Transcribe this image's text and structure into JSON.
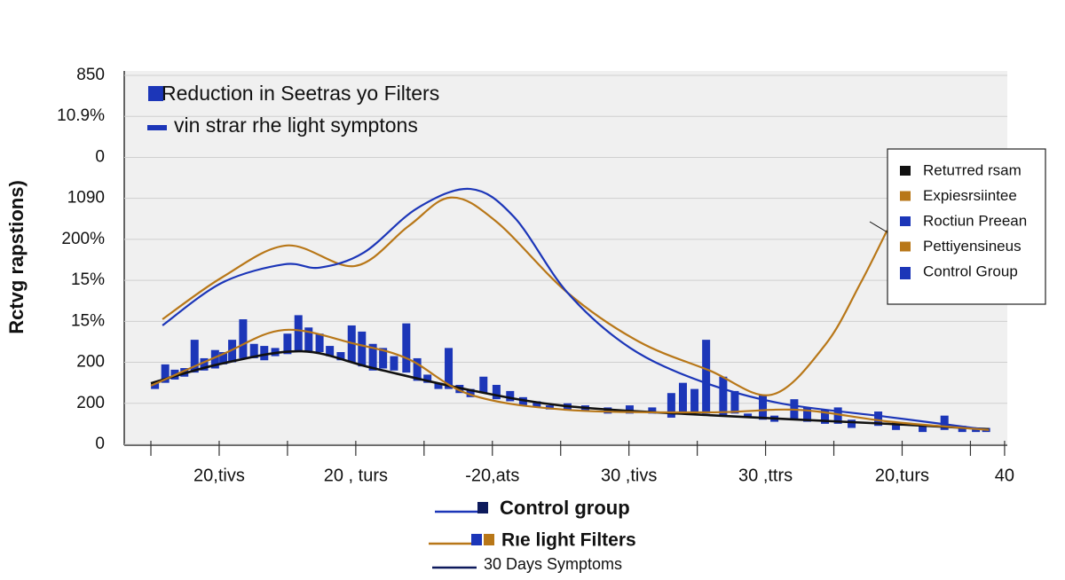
{
  "chart_data": {
    "type": "line",
    "title": "Reduction in Seetras yo Filters",
    "subtitle": "vin strar rhe light symptons",
    "ylabel": "Rctvg rapstions)",
    "xlim": [
      -0.39,
      12.54
    ],
    "ylim": [
      0,
      9
    ],
    "grid": true,
    "legend": "right",
    "xticks": [
      {
        "value": 1,
        "label": "20,tivs"
      },
      {
        "value": 3,
        "label": "20 , turs"
      },
      {
        "value": 5,
        "label": "-20,ats"
      },
      {
        "value": 7,
        "label": "30 ,tivs"
      },
      {
        "value": 9,
        "label": "30 ,ttrs"
      },
      {
        "value": 11,
        "label": "20,turs"
      },
      {
        "value": 12.5,
        "label": "40"
      }
    ],
    "xminor_ticks": [
      0,
      2,
      4,
      6,
      8,
      10,
      12
    ],
    "yticks": [
      {
        "value": 0,
        "label": "0"
      },
      {
        "value": 1,
        "label": "200"
      },
      {
        "value": 2,
        "label": "200"
      },
      {
        "value": 3,
        "label": "15%"
      },
      {
        "value": 4,
        "label": "15%"
      },
      {
        "value": 5,
        "label": "200%"
      },
      {
        "value": 6,
        "label": "1090"
      },
      {
        "value": 7,
        "label": "0"
      },
      {
        "value": 8,
        "label": "10.9%"
      },
      {
        "value": 9,
        "label": "850"
      }
    ],
    "series": [
      {
        "name": "Retuтred rsam",
        "kind": "line",
        "color": "#111111",
        "x": [
          0,
          1.04,
          2.21,
          3.25,
          4.68,
          6.1,
          8.18,
          10.78,
          12.27
        ],
        "values": [
          1.49,
          1.97,
          2.27,
          1.86,
          1.32,
          0.93,
          0.71,
          0.5,
          0.37
        ]
      },
      {
        "name": "Expiesrsiintee",
        "kind": "line",
        "color": "#b87718",
        "x": [
          0.17,
          1.04,
          1.99,
          2.99,
          3.77,
          4.39,
          5.06,
          6.1,
          7.14,
          8.18,
          9.09,
          9.87,
          10.39,
          10.78
        ],
        "values": [
          3.05,
          4.07,
          4.85,
          4.35,
          5.32,
          6.02,
          5.43,
          3.7,
          2.51,
          1.8,
          1.21,
          2.42,
          3.93,
          5.22
        ]
      },
      {
        "name": "Roctiun Preean",
        "kind": "line",
        "color": "#1c36b8",
        "x": [
          0.17,
          1.04,
          1.95,
          2.47,
          3.12,
          3.9,
          4.68,
          5.32,
          6.1,
          7.01,
          8.05,
          9.22,
          10.78,
          12.27
        ],
        "values": [
          2.9,
          3.94,
          4.39,
          4.31,
          4.68,
          5.76,
          6.23,
          5.54,
          3.7,
          2.36,
          1.54,
          1.0,
          0.67,
          0.35
        ]
      },
      {
        "name": "Pettiyensineus",
        "kind": "line",
        "color": "#b87718",
        "x": [
          0,
          1.04,
          1.95,
          2.99,
          3.77,
          4.68,
          6.1,
          8.18,
          9.48,
          10.78,
          12.27
        ],
        "values": [
          1.43,
          2.19,
          2.79,
          2.45,
          2.08,
          1.21,
          0.84,
          0.78,
          0.84,
          0.56,
          0.35
        ]
      },
      {
        "name": "Control Group",
        "kind": "bar",
        "color": "#1c36b8",
        "x": [
          0.06,
          0.21,
          0.35,
          0.49,
          0.64,
          0.78,
          0.94,
          1.06,
          1.19,
          1.35,
          1.51,
          1.66,
          1.82,
          2.0,
          2.16,
          2.31,
          2.47,
          2.62,
          2.78,
          2.94,
          3.09,
          3.25,
          3.4,
          3.56,
          3.74,
          3.9,
          4.05,
          4.21,
          4.36,
          4.52,
          4.68,
          4.87,
          5.06,
          5.26,
          5.45,
          5.65,
          5.84,
          6.1,
          6.36,
          6.69,
          7.01,
          7.34,
          7.62,
          7.79,
          7.96,
          8.13,
          8.38,
          8.55,
          8.74,
          8.96,
          9.13,
          9.42,
          9.61,
          9.87,
          10.06,
          10.26,
          10.65,
          10.91,
          11.3,
          11.62,
          11.88,
          12.08,
          12.23
        ],
        "values": [
          1.5,
          1.95,
          1.82,
          1.86,
          2.55,
          2.1,
          2.3,
          2.25,
          2.55,
          3.05,
          2.45,
          2.4,
          2.35,
          2.7,
          3.15,
          2.85,
          2.7,
          2.4,
          2.25,
          2.9,
          2.75,
          2.45,
          2.35,
          2.15,
          2.95,
          2.1,
          1.7,
          1.5,
          2.35,
          1.45,
          1.35,
          1.65,
          1.45,
          1.3,
          1.15,
          1.05,
          0.95,
          1.0,
          0.95,
          0.9,
          0.95,
          0.9,
          1.25,
          1.5,
          1.35,
          2.55,
          1.65,
          1.3,
          0.75,
          1.2,
          0.7,
          1.1,
          0.9,
          0.85,
          0.9,
          0.6,
          0.8,
          0.55,
          0.45,
          0.7,
          0.45,
          0.4,
          0.4
        ],
        "base": [
          1.35,
          1.5,
          1.58,
          1.65,
          1.75,
          1.8,
          1.85,
          1.95,
          2.0,
          2.1,
          2.1,
          2.05,
          2.15,
          2.2,
          2.25,
          2.25,
          2.25,
          2.15,
          2.05,
          2.0,
          1.9,
          1.8,
          1.85,
          1.8,
          1.75,
          1.55,
          1.5,
          1.35,
          1.35,
          1.25,
          1.15,
          1.25,
          1.1,
          1.05,
          0.95,
          0.9,
          0.85,
          0.85,
          0.8,
          0.75,
          0.75,
          0.75,
          0.65,
          0.8,
          0.8,
          0.75,
          0.7,
          0.75,
          0.65,
          0.6,
          0.55,
          0.6,
          0.55,
          0.5,
          0.5,
          0.4,
          0.45,
          0.35,
          0.3,
          0.35,
          0.3,
          0.3,
          0.3
        ]
      }
    ],
    "bottom_legend": [
      {
        "label": "Control group",
        "color": "#1c36b8"
      },
      {
        "label": "Rıe light Filters",
        "color": "#b87718"
      },
      {
        "label": "30 Days Symptoms",
        "color": "#0d1a5c"
      }
    ]
  }
}
